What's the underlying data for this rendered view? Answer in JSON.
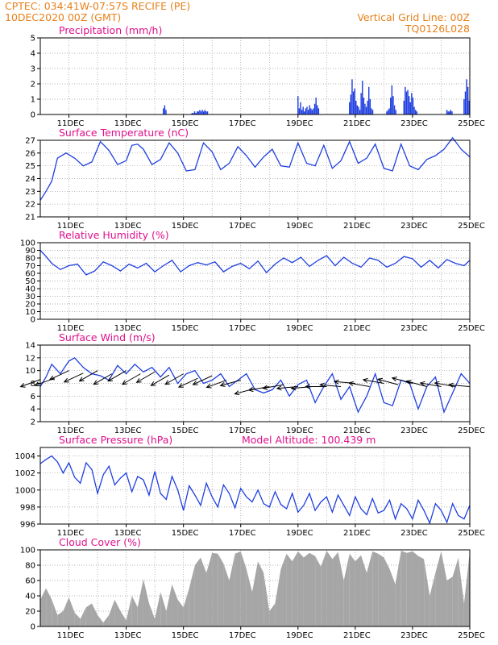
{
  "header": {
    "line1": "CPTEC:   034:41W-07:57S   RECIFE (PE)",
    "line2": "10DEC2020 00Z (GMT)",
    "grid_note": "Vertical Grid Line: 00Z",
    "code": "TQ0126L028"
  },
  "colors": {
    "header": "#e8801a",
    "title": "#e0108c",
    "series": "#1f3fe0",
    "cloud": "#a6a6a6",
    "grid": "#9a9a9a"
  },
  "x_ticks": [
    "11DEC",
    "13DEC",
    "15DEC",
    "17DEC",
    "19DEC",
    "21DEC",
    "23DEC",
    "25DEC"
  ],
  "chart_data": [
    {
      "type": "bar",
      "title": "Precipitation (mm/h)",
      "ylim": [
        0,
        5
      ],
      "yticks": [
        "0",
        "1",
        "2",
        "3",
        "4",
        "5"
      ],
      "x_days": [
        0,
        15
      ],
      "grid": true,
      "events": [
        {
          "day": 4.3,
          "values": [
            0.4,
            0.6,
            0.3
          ]
        },
        {
          "day": 5.3,
          "values": [
            0.1,
            0.1,
            0.2,
            0.1,
            0.2,
            0.2,
            0.3,
            0.2,
            0.3,
            0.2,
            0.3,
            0.2,
            0.2
          ]
        },
        {
          "day": 9.0,
          "values": [
            1.2,
            0.4,
            0.8,
            0.3,
            0.5,
            0.2,
            0.4,
            0.5,
            0.3,
            0.6,
            0.4,
            0.3,
            0.4,
            0.7,
            1.1,
            0.6,
            0.4
          ]
        },
        {
          "day": 10.8,
          "values": [
            0.8,
            1.3,
            2.3,
            1.5,
            1.7,
            0.9,
            0.6,
            0.5,
            0.3,
            1.4,
            2.2,
            1.1,
            0.7,
            0.5,
            0.9,
            1.8,
            1.0,
            0.4,
            0.3
          ]
        },
        {
          "day": 12.1,
          "values": [
            0.2,
            0.3,
            0.4,
            1.1,
            1.9,
            1.2,
            0.6,
            0.3
          ]
        },
        {
          "day": 12.7,
          "values": [
            0.9,
            1.8,
            1.5,
            1.6,
            1.2,
            0.8,
            1.4,
            1.1,
            0.5,
            0.3,
            0.2
          ]
        },
        {
          "day": 14.2,
          "values": [
            0.3,
            0.2,
            0.2,
            0.3,
            0.2
          ]
        },
        {
          "day": 14.8,
          "values": [
            1.0,
            1.5,
            2.3,
            1.8,
            0.9
          ]
        }
      ]
    },
    {
      "type": "line",
      "title": "Surface Temperature (nC)",
      "ylim": [
        21,
        27
      ],
      "yticks": [
        "21",
        "22",
        "23",
        "24",
        "25",
        "26",
        "27"
      ],
      "x_days": [
        0,
        15
      ],
      "x": [
        0.0,
        0.2,
        0.4,
        0.6,
        0.9,
        1.2,
        1.5,
        1.8,
        2.1,
        2.4,
        2.7,
        3.0,
        3.2,
        3.4,
        3.6,
        3.9,
        4.2,
        4.5,
        4.8,
        5.1,
        5.4,
        5.7,
        6.0,
        6.3,
        6.6,
        6.9,
        7.2,
        7.5,
        7.8,
        8.1,
        8.4,
        8.7,
        9.0,
        9.3,
        9.6,
        9.9,
        10.2,
        10.5,
        10.8,
        11.1,
        11.4,
        11.7,
        12.0,
        12.3,
        12.6,
        12.9,
        13.2,
        13.5,
        13.8,
        14.1,
        14.4,
        14.7,
        15.0
      ],
      "y": [
        22.3,
        23.0,
        23.8,
        25.6,
        26.0,
        25.6,
        25.0,
        25.3,
        26.9,
        26.2,
        25.1,
        25.4,
        26.6,
        26.7,
        26.3,
        25.1,
        25.5,
        26.8,
        26.0,
        24.6,
        24.7,
        26.8,
        26.1,
        24.7,
        25.2,
        26.5,
        25.8,
        24.9,
        25.7,
        26.3,
        25.0,
        24.9,
        26.8,
        25.2,
        25.0,
        26.6,
        24.8,
        25.4,
        26.9,
        25.2,
        25.6,
        26.7,
        24.8,
        24.6,
        26.7,
        25.0,
        24.7,
        25.5,
        25.8,
        26.3,
        27.2,
        26.3,
        25.7
      ]
    },
    {
      "type": "line",
      "title": "Relative Humidity (%)",
      "ylim": [
        0,
        100
      ],
      "yticks": [
        "0",
        "10",
        "20",
        "30",
        "40",
        "50",
        "60",
        "70",
        "80",
        "90",
        "100"
      ],
      "x_days": [
        0,
        15
      ],
      "x": [
        0.0,
        0.2,
        0.4,
        0.7,
        1.0,
        1.3,
        1.6,
        1.9,
        2.2,
        2.5,
        2.8,
        3.1,
        3.4,
        3.7,
        4.0,
        4.3,
        4.6,
        4.9,
        5.2,
        5.5,
        5.8,
        6.1,
        6.4,
        6.7,
        7.0,
        7.3,
        7.6,
        7.9,
        8.2,
        8.5,
        8.8,
        9.1,
        9.4,
        9.7,
        10.0,
        10.3,
        10.6,
        10.9,
        11.2,
        11.5,
        11.8,
        12.1,
        12.4,
        12.7,
        13.0,
        13.3,
        13.6,
        13.9,
        14.2,
        14.5,
        14.8,
        15.0
      ],
      "y": [
        90,
        82,
        73,
        65,
        70,
        72,
        58,
        63,
        75,
        70,
        63,
        72,
        67,
        73,
        62,
        70,
        77,
        62,
        70,
        74,
        71,
        75,
        62,
        69,
        73,
        66,
        76,
        61,
        72,
        80,
        74,
        81,
        69,
        77,
        83,
        70,
        81,
        73,
        68,
        80,
        77,
        68,
        73,
        82,
        79,
        68,
        77,
        67,
        78,
        73,
        70,
        77
      ]
    },
    {
      "type": "line",
      "title": "Surface Wind (m/s)",
      "ylim": [
        2,
        14
      ],
      "yticks": [
        "2",
        "4",
        "6",
        "8",
        "10",
        "12",
        "14"
      ],
      "x_days": [
        0,
        15
      ],
      "x": [
        0.0,
        0.2,
        0.4,
        0.7,
        1.0,
        1.2,
        1.5,
        1.8,
        2.1,
        2.4,
        2.7,
        3.0,
        3.3,
        3.6,
        3.9,
        4.2,
        4.5,
        4.8,
        5.1,
        5.4,
        5.7,
        6.0,
        6.3,
        6.6,
        6.9,
        7.2,
        7.5,
        7.8,
        8.1,
        8.4,
        8.7,
        9.0,
        9.3,
        9.6,
        9.9,
        10.2,
        10.5,
        10.8,
        11.1,
        11.4,
        11.7,
        12.0,
        12.3,
        12.6,
        12.9,
        13.2,
        13.5,
        13.8,
        14.1,
        14.4,
        14.7,
        15.0
      ],
      "y": [
        7.5,
        9.0,
        11.0,
        9.5,
        11.5,
        12.0,
        10.5,
        9.5,
        9.2,
        8.5,
        10.8,
        9.5,
        11.0,
        9.8,
        10.5,
        9.0,
        10.5,
        8.0,
        9.5,
        10.0,
        8.0,
        8.5,
        9.5,
        7.5,
        8.5,
        9.5,
        7.0,
        6.5,
        7.0,
        8.5,
        6.0,
        7.8,
        8.5,
        5.0,
        7.5,
        9.5,
        5.5,
        7.5,
        3.5,
        6.0,
        9.5,
        5.0,
        4.5,
        8.5,
        8.0,
        4.0,
        7.5,
        9.0,
        3.5,
        6.5,
        9.5,
        8.0
      ],
      "arrows_days": [
        0.0,
        0.5,
        1.0,
        1.5,
        2.0,
        2.5,
        3.0,
        3.5,
        4.0,
        4.5,
        5.0,
        5.5,
        6.0,
        6.5,
        7.0,
        7.5,
        8.0,
        8.5,
        9.0,
        9.5,
        10.0,
        10.5,
        11.0,
        11.5,
        12.0,
        12.5,
        13.0,
        13.5,
        14.0,
        14.5,
        15.0
      ],
      "arrows_speed": [
        8.6,
        8.8,
        10.0,
        9.6,
        10.0,
        9.5,
        10.0,
        9.5,
        9.8,
        9.3,
        9.5,
        8.8,
        9.2,
        8.5,
        8.5,
        7.2,
        7.5,
        7.8,
        7.5,
        7.5,
        7.5,
        7.5,
        8.0,
        7.5,
        8.0,
        7.8,
        8.0,
        7.5,
        7.5,
        7.5,
        7.5
      ],
      "arrows_dir_deg": [
        160,
        160,
        155,
        155,
        150,
        150,
        150,
        150,
        150,
        150,
        150,
        155,
        155,
        160,
        165,
        165,
        170,
        170,
        175,
        175,
        180,
        185,
        185,
        190,
        190,
        195,
        195,
        195,
        190,
        190,
        185
      ]
    },
    {
      "type": "line",
      "title": "Surface Pressure (hPa)",
      "annotation": "Model Altitude: 100.439 m",
      "ylim": [
        996,
        1005
      ],
      "yticks": [
        "996",
        "998",
        "1000",
        "1002",
        "1004"
      ],
      "x_days": [
        0,
        15
      ],
      "x": [
        0.0,
        0.2,
        0.4,
        0.6,
        0.8,
        1.0,
        1.2,
        1.4,
        1.6,
        1.8,
        2.0,
        2.2,
        2.4,
        2.6,
        2.8,
        3.0,
        3.2,
        3.4,
        3.6,
        3.8,
        4.0,
        4.2,
        4.4,
        4.6,
        4.8,
        5.0,
        5.2,
        5.4,
        5.6,
        5.8,
        6.0,
        6.2,
        6.4,
        6.6,
        6.8,
        7.0,
        7.2,
        7.4,
        7.6,
        7.8,
        8.0,
        8.2,
        8.4,
        8.6,
        8.8,
        9.0,
        9.2,
        9.4,
        9.6,
        9.8,
        10.0,
        10.2,
        10.4,
        10.6,
        10.8,
        11.0,
        11.2,
        11.4,
        11.6,
        11.8,
        12.0,
        12.2,
        12.4,
        12.6,
        12.8,
        13.0,
        13.2,
        13.4,
        13.6,
        13.8,
        14.0,
        14.2,
        14.4,
        14.6,
        14.8,
        15.0
      ],
      "y": [
        1003.1,
        1003.6,
        1004.0,
        1003.3,
        1002.0,
        1003.2,
        1001.5,
        1000.8,
        1003.2,
        1002.4,
        999.6,
        1001.8,
        1002.8,
        1000.6,
        1001.4,
        1002.0,
        999.8,
        1001.6,
        1001.2,
        999.4,
        1002.2,
        999.6,
        998.9,
        1001.6,
        1000.0,
        997.6,
        1000.5,
        999.4,
        998.2,
        1000.8,
        999.2,
        998.0,
        1000.6,
        999.6,
        997.9,
        1000.2,
        999.2,
        998.6,
        1000.0,
        998.4,
        998.0,
        999.8,
        998.3,
        997.8,
        999.6,
        997.4,
        998.2,
        999.6,
        997.6,
        998.6,
        999.2,
        997.4,
        999.4,
        998.2,
        997.0,
        999.2,
        997.8,
        997.1,
        999.0,
        997.3,
        997.6,
        998.8,
        996.6,
        998.4,
        997.8,
        996.6,
        998.8,
        997.6,
        996.1,
        998.4,
        997.6,
        996.2,
        998.4,
        997.0,
        996.6,
        998.2
      ]
    },
    {
      "type": "area",
      "title": "Cloud Cover (%)",
      "ylim": [
        0,
        100
      ],
      "yticks": [
        "0",
        "20",
        "40",
        "60",
        "80",
        "100"
      ],
      "x_days": [
        0,
        15
      ],
      "x": [
        0.0,
        0.2,
        0.4,
        0.6,
        0.8,
        1.0,
        1.2,
        1.4,
        1.6,
        1.8,
        2.0,
        2.2,
        2.4,
        2.6,
        2.8,
        3.0,
        3.2,
        3.4,
        3.6,
        3.8,
        4.0,
        4.2,
        4.4,
        4.6,
        4.8,
        5.0,
        5.2,
        5.4,
        5.6,
        5.8,
        6.0,
        6.2,
        6.4,
        6.6,
        6.8,
        7.0,
        7.2,
        7.4,
        7.6,
        7.8,
        8.0,
        8.2,
        8.4,
        8.6,
        8.8,
        9.0,
        9.2,
        9.4,
        9.6,
        9.8,
        10.0,
        10.2,
        10.4,
        10.6,
        10.8,
        11.0,
        11.2,
        11.4,
        11.6,
        11.8,
        12.0,
        12.2,
        12.4,
        12.6,
        12.8,
        13.0,
        13.2,
        13.4,
        13.6,
        13.8,
        14.0,
        14.2,
        14.4,
        14.6,
        14.8,
        15.0
      ],
      "y": [
        35,
        50,
        35,
        15,
        20,
        38,
        18,
        10,
        25,
        30,
        15,
        5,
        15,
        35,
        20,
        8,
        40,
        25,
        62,
        30,
        10,
        45,
        20,
        55,
        35,
        25,
        50,
        80,
        90,
        70,
        96,
        95,
        82,
        60,
        95,
        98,
        75,
        45,
        85,
        70,
        20,
        30,
        75,
        95,
        85,
        98,
        90,
        96,
        92,
        78,
        99,
        88,
        97,
        60,
        95,
        85,
        93,
        70,
        98,
        95,
        90,
        75,
        55,
        99,
        96,
        98,
        92,
        88,
        40,
        70,
        98,
        60,
        65,
        90,
        30,
        98
      ]
    }
  ]
}
